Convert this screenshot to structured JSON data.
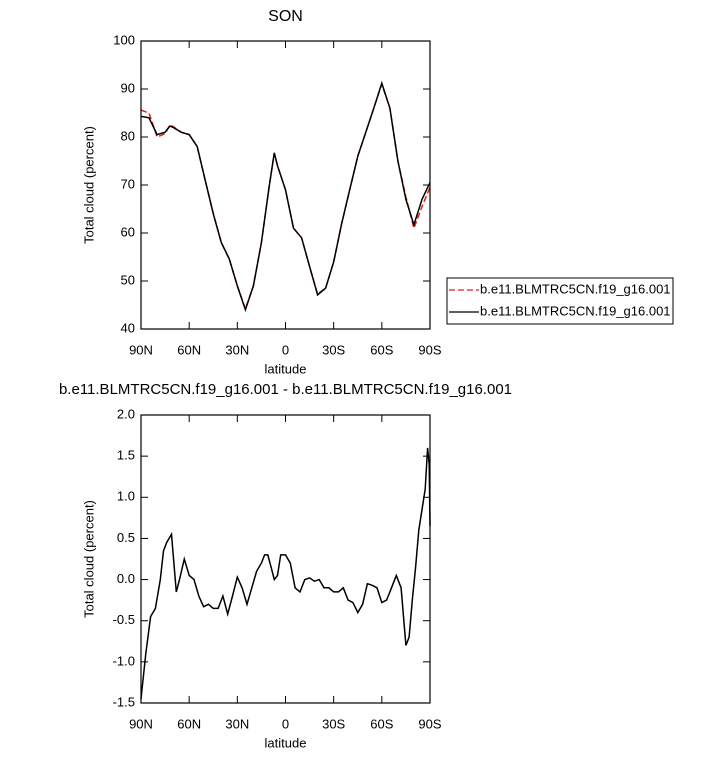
{
  "chart_data": [
    {
      "type": "line",
      "title": "SON",
      "xlabel": "latitude",
      "ylabel": "Total cloud (percent)",
      "xlim": [
        90,
        -90
      ],
      "xticks": [
        {
          "value": 90,
          "label": "90N"
        },
        {
          "value": 60,
          "label": "60N"
        },
        {
          "value": 30,
          "label": "30N"
        },
        0,
        {
          "value": -30,
          "label": "30S"
        },
        {
          "value": -60,
          "label": "60S"
        },
        {
          "value": -90,
          "label": "90S"
        }
      ],
      "ylim": [
        40,
        100
      ],
      "yticks": [
        40,
        50,
        60,
        70,
        80,
        90,
        100
      ],
      "legend": "right",
      "x": [
        90,
        85,
        80,
        75,
        72,
        70,
        65,
        60,
        55,
        50,
        45,
        40,
        35,
        30,
        25,
        20,
        15,
        10,
        7,
        5,
        0,
        -5,
        -10,
        -15,
        -20,
        -25,
        -30,
        -35,
        -40,
        -45,
        -50,
        -55,
        -60,
        -65,
        -70,
        -75,
        -80,
        -85,
        -90
      ],
      "series": [
        {
          "name": "b.e11.BLMTRC5CN.f19_g16.001",
          "color": "#e0201b",
          "linestyle": "dashed",
          "values": [
            85.6,
            85,
            80,
            80.7,
            82.5,
            82.2,
            81,
            80.5,
            78,
            71,
            64,
            58,
            54.5,
            49,
            44.2,
            49,
            58,
            70,
            76.6,
            74,
            69,
            61,
            59,
            53,
            47.3,
            48.5,
            54,
            62,
            69,
            76,
            81,
            86,
            91,
            86,
            75,
            67.5,
            61,
            65.5,
            69.5
          ]
        },
        {
          "name": "b.e11.BLMTRC5CN.f19_g16.001",
          "color": "#000000",
          "linestyle": "solid",
          "values": [
            84.3,
            84,
            80.5,
            81,
            82.3,
            82,
            81,
            80.5,
            78,
            71,
            64,
            58,
            54.6,
            49,
            44,
            49,
            58,
            70,
            76.7,
            74,
            69,
            61,
            59,
            53,
            47.1,
            48.5,
            54,
            62,
            69,
            76,
            81,
            86,
            91.2,
            86,
            75,
            67,
            61.7,
            67,
            70.5
          ]
        }
      ]
    },
    {
      "type": "line",
      "title": "b.e11.BLMTRC5CN.f19_g16.001 - b.e11.BLMTRC5CN.f19_g16.001",
      "xlabel": "latitude",
      "ylabel": "Total cloud (percent)",
      "xlim": [
        90,
        -90
      ],
      "xticks": [
        {
          "value": 90,
          "label": "90N"
        },
        {
          "value": 60,
          "label": "60N"
        },
        {
          "value": 30,
          "label": "30N"
        },
        0,
        {
          "value": -30,
          "label": "30S"
        },
        {
          "value": -60,
          "label": "60S"
        },
        {
          "value": -90,
          "label": "90S"
        }
      ],
      "ylim": [
        -1.5,
        2.0
      ],
      "yticks": [
        -1.5,
        {
          "value": -1.0,
          "label": "-1.0"
        },
        -0.5,
        {
          "value": 0,
          "label": "0.0"
        },
        0.5,
        {
          "value": 1.0,
          "label": "1.0"
        },
        1.5,
        {
          "value": 2.0,
          "label": "2.0"
        }
      ],
      "x": [
        90,
        87,
        84,
        81,
        78,
        76,
        74,
        71,
        68,
        66,
        63,
        60,
        57,
        54,
        51,
        48,
        45,
        42,
        39,
        36,
        33,
        30,
        27,
        24,
        21,
        18,
        15,
        13,
        11,
        9,
        7,
        5,
        3,
        0,
        -3,
        -6,
        -9,
        -12,
        -15,
        -18,
        -21,
        -24,
        -27,
        -30,
        -33,
        -36,
        -39,
        -42,
        -45,
        -48,
        -51,
        -54,
        -57,
        -60,
        -63,
        -66,
        -69,
        -72,
        -75,
        -77,
        -79,
        -81,
        -83,
        -85,
        -87,
        -88.5,
        -89.5,
        -90
      ],
      "color": "#000000",
      "values": [
        -1.45,
        -0.9,
        -0.45,
        -0.35,
        0.0,
        0.35,
        0.45,
        0.55,
        -0.15,
        0.0,
        0.25,
        0.05,
        0.0,
        -0.2,
        -0.33,
        -0.3,
        -0.35,
        -0.35,
        -0.2,
        -0.42,
        -0.2,
        0.03,
        -0.1,
        -0.3,
        -0.1,
        0.1,
        0.2,
        0.3,
        0.3,
        0.15,
        0.0,
        0.05,
        0.3,
        0.3,
        0.2,
        -0.1,
        -0.15,
        0.0,
        0.02,
        -0.02,
        0.0,
        -0.1,
        -0.1,
        -0.15,
        -0.15,
        -0.1,
        -0.25,
        -0.28,
        -0.4,
        -0.3,
        -0.05,
        -0.07,
        -0.1,
        -0.28,
        -0.25,
        -0.1,
        0.05,
        -0.1,
        -0.8,
        -0.7,
        -0.25,
        0.15,
        0.6,
        0.85,
        1.1,
        1.6,
        1.4,
        0.65
      ]
    }
  ]
}
